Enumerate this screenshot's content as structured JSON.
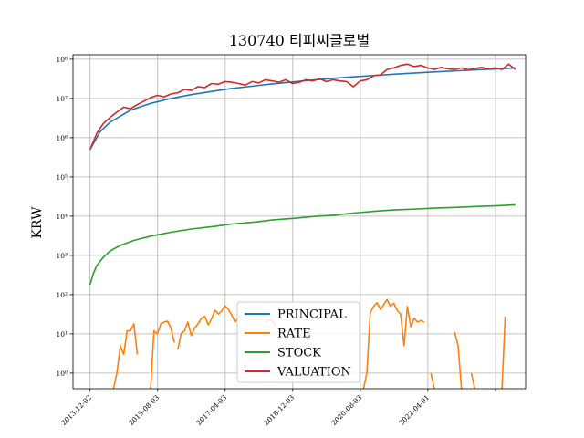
{
  "chart_data": {
    "type": "line",
    "title": "130740 티피씨글로벌",
    "xlabel": "",
    "ylabel": "KRW",
    "y_scale": "log",
    "ylim": [
      0.4,
      130000000
    ],
    "xlim": [
      "2013-07-01",
      "2024-09-01"
    ],
    "grid": true,
    "legend_position": "lower-center",
    "x_ticks": [
      "2013-12-02",
      "2015-08-03",
      "2017-04-03",
      "2018-12-03",
      "2020-08-03",
      "2022-04-01",
      ""
    ],
    "y_ticks": [
      {
        "value": 1,
        "label": "10⁰"
      },
      {
        "value": 10,
        "label": "10¹"
      },
      {
        "value": 100,
        "label": "10²"
      },
      {
        "value": 1000,
        "label": "10³"
      },
      {
        "value": 10000,
        "label": "10⁴"
      },
      {
        "value": 100000,
        "label": "10⁵"
      },
      {
        "value": 1000000,
        "label": "10⁶"
      },
      {
        "value": 10000000,
        "label": "10⁷"
      },
      {
        "value": 100000000,
        "label": "10⁸"
      }
    ],
    "series": [
      {
        "name": "PRINCIPAL",
        "color": "#1f77b4",
        "x": [
          "2013-12-02",
          "2014-03-01",
          "2014-06-01",
          "2014-12-01",
          "2015-06-01",
          "2015-12-01",
          "2016-06-01",
          "2017-01-01",
          "2017-06-01",
          "2018-01-01",
          "2018-06-01",
          "2019-01-01",
          "2019-06-01",
          "2020-01-01",
          "2020-06-01",
          "2021-01-01",
          "2021-06-01",
          "2022-01-01",
          "2022-06-01",
          "2023-01-01",
          "2023-06-01",
          "2024-01-01",
          "2024-06-01"
        ],
        "values": [
          500000,
          1400000,
          2500000,
          5000000,
          7500000,
          10000000,
          12500000,
          15500000,
          18000000,
          21000000,
          23500000,
          27000000,
          29500000,
          33000000,
          35500000,
          39000000,
          41500000,
          45000000,
          47500000,
          51000000,
          53500000,
          57000000,
          60000000
        ]
      },
      {
        "name": "RATE",
        "color": "#ff7f0e",
        "segments": [
          {
            "x": [
              "2014-07-01",
              "2014-08-01",
              "2014-09-01",
              "2014-10-01",
              "2014-11-01",
              "2014-12-01",
              "2015-01-01",
              "2015-02-01"
            ],
            "values": [
              0.4,
              1,
              5,
              3,
              12,
              12,
              18,
              3
            ]
          },
          {
            "x": [
              "2015-06-01",
              "2015-07-01",
              "2015-08-01",
              "2015-09-01",
              "2015-10-01",
              "2015-11-01",
              "2015-12-01",
              "2016-01-01"
            ],
            "values": [
              0.4,
              12,
              10,
              18,
              20,
              21,
              14,
              6
            ]
          },
          {
            "x": [
              "2016-02-01",
              "2016-03-01",
              "2016-04-01",
              "2016-05-01",
              "2016-06-01",
              "2016-07-01",
              "2016-08-01",
              "2016-09-01",
              "2016-10-01",
              "2016-11-01",
              "2016-12-01",
              "2017-01-01",
              "2017-02-01",
              "2017-03-01",
              "2017-04-01",
              "2017-05-01",
              "2017-06-01",
              "2017-07-01",
              "2017-08-01",
              "2017-09-01"
            ],
            "values": [
              4,
              10,
              12,
              20,
              9,
              14,
              18,
              25,
              28,
              17,
              24,
              40,
              32,
              38,
              52,
              42,
              30,
              20,
              26,
              28
            ]
          },
          {
            "x": [
              "2018-04-01",
              "2018-05-01",
              "2018-06-01",
              "2018-07-01"
            ],
            "values": [
              20,
              22,
              22,
              16
            ]
          },
          {
            "x": [
              "2020-09-01",
              "2020-10-01",
              "2020-11-01",
              "2020-12-01",
              "2021-01-01",
              "2021-02-01",
              "2021-03-01",
              "2021-04-01",
              "2021-05-01",
              "2021-06-01",
              "2021-07-01",
              "2021-08-01",
              "2021-09-01",
              "2021-10-01",
              "2021-11-01",
              "2021-12-01",
              "2022-01-01",
              "2022-02-01",
              "2022-03-01"
            ],
            "values": [
              0.4,
              1,
              35,
              50,
              62,
              42,
              55,
              75,
              50,
              60,
              40,
              32,
              5,
              50,
              15,
              25,
              20,
              22,
              20
            ]
          },
          {
            "x": [
              "2022-05-01",
              "2022-06-01"
            ],
            "values": [
              1,
              0.4
            ]
          },
          {
            "x": [
              "2022-12-01",
              "2023-01-01",
              "2023-02-01"
            ],
            "values": [
              11,
              5,
              0.4
            ]
          },
          {
            "x": [
              "2023-05-01",
              "2023-06-01"
            ],
            "values": [
              1,
              0.4
            ]
          },
          {
            "x": [
              "2024-02-01",
              "2024-03-01"
            ],
            "values": [
              0.4,
              28
            ]
          }
        ]
      },
      {
        "name": "STOCK",
        "color": "#2ca02c",
        "x": [
          "2013-12-02",
          "2014-01-01",
          "2014-02-01",
          "2014-04-01",
          "2014-06-01",
          "2014-09-01",
          "2015-01-01",
          "2015-06-01",
          "2015-12-01",
          "2016-06-01",
          "2017-01-01",
          "2017-06-01",
          "2018-01-01",
          "2018-06-01",
          "2019-01-01",
          "2019-06-01",
          "2020-01-01",
          "2020-06-01",
          "2021-01-01",
          "2021-06-01",
          "2022-01-01",
          "2022-06-01",
          "2023-01-01",
          "2023-06-01",
          "2024-01-01",
          "2024-06-01"
        ],
        "values": [
          180,
          350,
          550,
          900,
          1300,
          1800,
          2400,
          3100,
          3900,
          4700,
          5500,
          6300,
          7100,
          8000,
          8900,
          9800,
          10700,
          12000,
          13500,
          14400,
          15300,
          16000,
          16800,
          17600,
          18500,
          19500
        ]
      },
      {
        "name": "VALUATION",
        "color": "#d62728",
        "x": [
          "2013-12-02",
          "2014-02-01",
          "2014-04-01",
          "2014-06-01",
          "2014-08-01",
          "2014-10-01",
          "2014-12-01",
          "2015-02-01",
          "2015-04-01",
          "2015-06-01",
          "2015-08-01",
          "2015-10-01",
          "2015-12-01",
          "2016-02-01",
          "2016-04-01",
          "2016-06-01",
          "2016-08-01",
          "2016-10-01",
          "2016-12-01",
          "2017-02-01",
          "2017-04-01",
          "2017-06-01",
          "2017-08-01",
          "2017-10-01",
          "2017-12-01",
          "2018-02-01",
          "2018-04-01",
          "2018-06-01",
          "2018-08-01",
          "2018-10-01",
          "2018-12-01",
          "2019-02-01",
          "2019-04-01",
          "2019-06-01",
          "2019-08-01",
          "2019-10-01",
          "2019-12-01",
          "2020-02-01",
          "2020-04-01",
          "2020-06-01",
          "2020-08-01",
          "2020-10-01",
          "2020-12-01",
          "2021-02-01",
          "2021-04-01",
          "2021-06-01",
          "2021-08-01",
          "2021-10-01",
          "2021-12-01",
          "2022-02-01",
          "2022-04-01",
          "2022-06-01",
          "2022-08-01",
          "2022-10-01",
          "2022-12-01",
          "2023-02-01",
          "2023-04-01",
          "2023-06-01",
          "2023-08-01",
          "2023-10-01",
          "2023-12-01",
          "2024-02-01",
          "2024-04-01",
          "2024-06-01"
        ],
        "values": [
          500000,
          1300000,
          2300000,
          3300000,
          4500000,
          6000000,
          5500000,
          7000000,
          8500000,
          10500000,
          12000000,
          11000000,
          13000000,
          14000000,
          17000000,
          16000000,
          20000000,
          19000000,
          24000000,
          23000000,
          27000000,
          26000000,
          24000000,
          22000000,
          27000000,
          25000000,
          30000000,
          28000000,
          26000000,
          30000000,
          24000000,
          26000000,
          30000000,
          28000000,
          32000000,
          27000000,
          30000000,
          28000000,
          27000000,
          20000000,
          28000000,
          30000000,
          38000000,
          40000000,
          55000000,
          60000000,
          70000000,
          75000000,
          65000000,
          70000000,
          60000000,
          55000000,
          62000000,
          57000000,
          55000000,
          60000000,
          54000000,
          58000000,
          62000000,
          56000000,
          60000000,
          55000000,
          75000000,
          55000000
        ]
      }
    ]
  }
}
